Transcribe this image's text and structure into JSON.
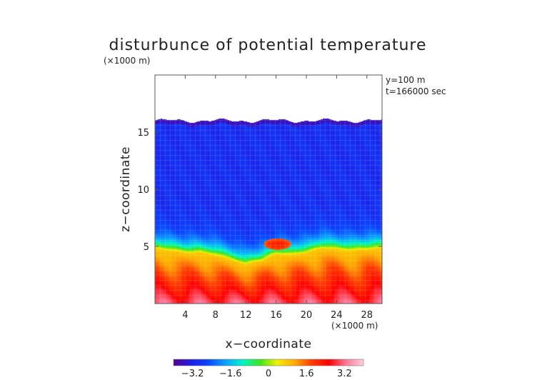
{
  "chart_data": {
    "type": "heatmap",
    "title": "disturbunce of potential temperature",
    "ylabel": "z−coordinate",
    "xlabel": "x−coordinate",
    "y_unit": "(×1000 m)",
    "x_unit": "(×1000 m)",
    "annotations": [
      "y=100 m",
      "t=166000 sec"
    ],
    "xlim": [
      0,
      30
    ],
    "ylim": [
      0,
      20
    ],
    "x_ticks": [
      {
        "value": 4,
        "label": "4"
      },
      {
        "value": 8,
        "label": "8"
      },
      {
        "value": 12,
        "label": "12"
      },
      {
        "value": 16,
        "label": "16"
      },
      {
        "value": 20,
        "label": "20"
      },
      {
        "value": 24,
        "label": "24"
      },
      {
        "value": 28,
        "label": "28"
      }
    ],
    "y_ticks": [
      {
        "value": 5,
        "label": "5"
      },
      {
        "value": 10,
        "label": "10"
      },
      {
        "value": 15,
        "label": "15"
      }
    ],
    "colorbar": {
      "range": [
        -4.0,
        4.0
      ],
      "ticks": [
        {
          "value": -3.2,
          "label": "−3.2"
        },
        {
          "value": -1.6,
          "label": "−1.6"
        },
        {
          "value": 0,
          "label": "0"
        },
        {
          "value": 1.6,
          "label": "1.6"
        },
        {
          "value": 3.2,
          "label": "3.2"
        }
      ],
      "colors": [
        "#5a008c",
        "#1e1ee6",
        "#0a46ff",
        "#0aa0ff",
        "#00f5c8",
        "#3ce61e",
        "#f0f000",
        "#ffaa00",
        "#ff3c00",
        "#ff0000",
        "#ff7a9a",
        "#ffd0dc"
      ]
    },
    "field": {
      "top_of_data_z": 16,
      "cold_layer_value": -3.0,
      "warm_surface_value": 3.0,
      "interface_z": [
        {
          "x": 0,
          "z": 4.8
        },
        {
          "x": 2,
          "z": 4.6
        },
        {
          "x": 4,
          "z": 4.4
        },
        {
          "x": 6,
          "z": 4.4
        },
        {
          "x": 8,
          "z": 4.2
        },
        {
          "x": 10,
          "z": 3.8
        },
        {
          "x": 12,
          "z": 3.4
        },
        {
          "x": 14,
          "z": 3.7
        },
        {
          "x": 16,
          "z": 4.3
        },
        {
          "x": 18,
          "z": 4.2
        },
        {
          "x": 20,
          "z": 4.4
        },
        {
          "x": 22,
          "z": 4.8
        },
        {
          "x": 24,
          "z": 4.7
        },
        {
          "x": 26,
          "z": 4.6
        },
        {
          "x": 28,
          "z": 4.7
        },
        {
          "x": 30,
          "z": 4.8
        }
      ],
      "warm_bubble": {
        "x": 16.2,
        "z": 5.2,
        "value": 2.2
      }
    }
  }
}
